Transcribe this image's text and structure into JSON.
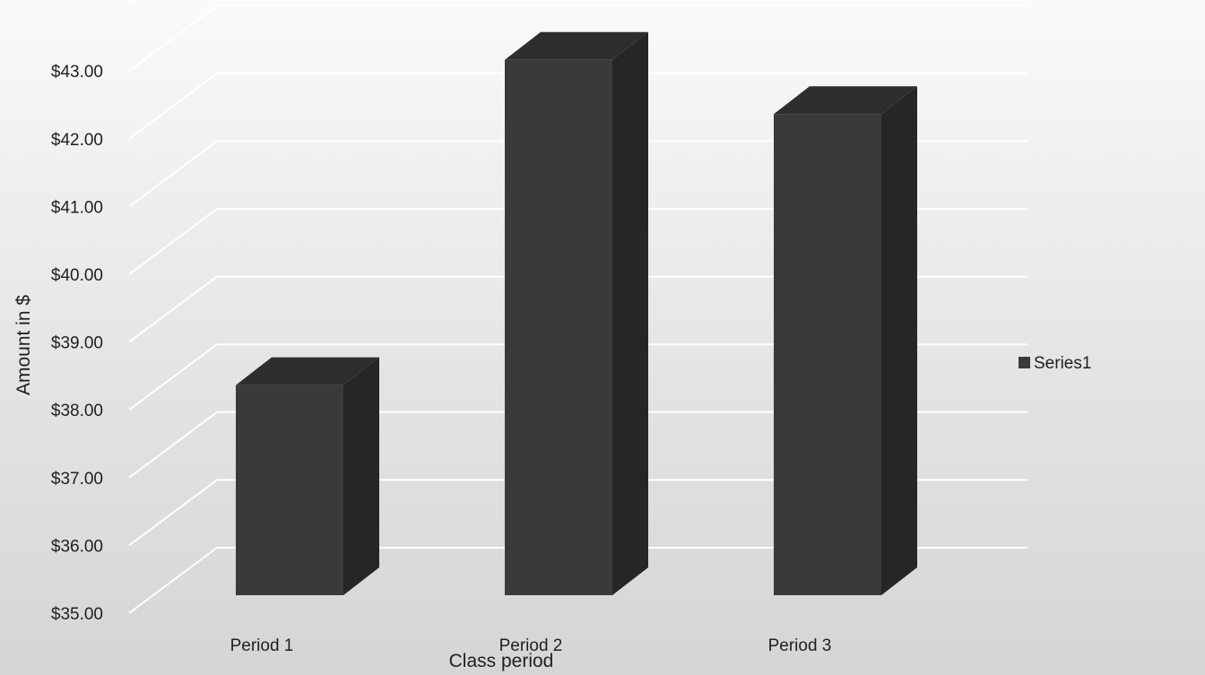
{
  "chart_data": {
    "type": "bar",
    "style": "3d-column",
    "categories": [
      "Period 1",
      "Period 2",
      "Period 3"
    ],
    "series": [
      {
        "name": "Series1",
        "values": [
          38.1,
          42.9,
          42.1
        ]
      }
    ],
    "xlabel": "Class period",
    "ylabel": "Amount in $",
    "ylim": [
      35,
      43
    ],
    "ytick_labels": [
      "$35.00",
      "$36.00",
      "$37.00",
      "$38.00",
      "$39.00",
      "$40.00",
      "$41.00",
      "$42.00",
      "$43.00"
    ],
    "grid": true,
    "legend": {
      "position": "right",
      "entries": [
        "Series1"
      ]
    },
    "colors": {
      "bar_front": "#3b3a3b",
      "bar_side": "#272627",
      "bar_top": "#2f2e2f",
      "gridline": "#ffffff",
      "text": "#1f1f1f"
    }
  }
}
